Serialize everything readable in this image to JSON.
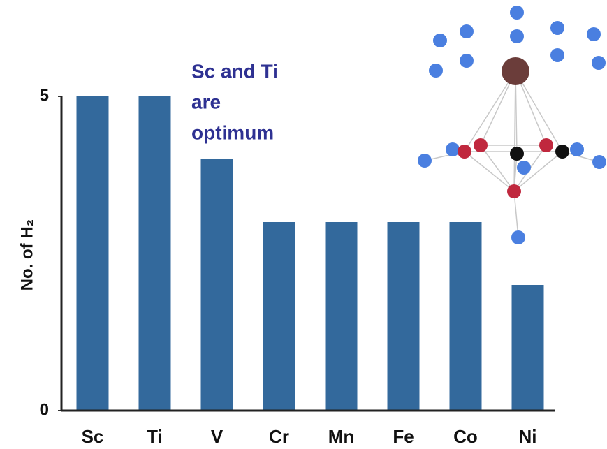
{
  "chart_data": {
    "type": "bar",
    "y_label": "No. of H₂",
    "annotation": [
      "Sc and Ti",
      "are",
      "optimum"
    ],
    "categories": [
      "Sc",
      "Ti",
      "V",
      "Cr",
      "Mn",
      "Fe",
      "Co",
      "Ni"
    ],
    "values": [
      5,
      5,
      4,
      3,
      3,
      3,
      3,
      2
    ],
    "color": "#33699c",
    "ylim": [
      0,
      5
    ],
    "yticks": [
      0,
      5
    ],
    "grid": false
  }
}
